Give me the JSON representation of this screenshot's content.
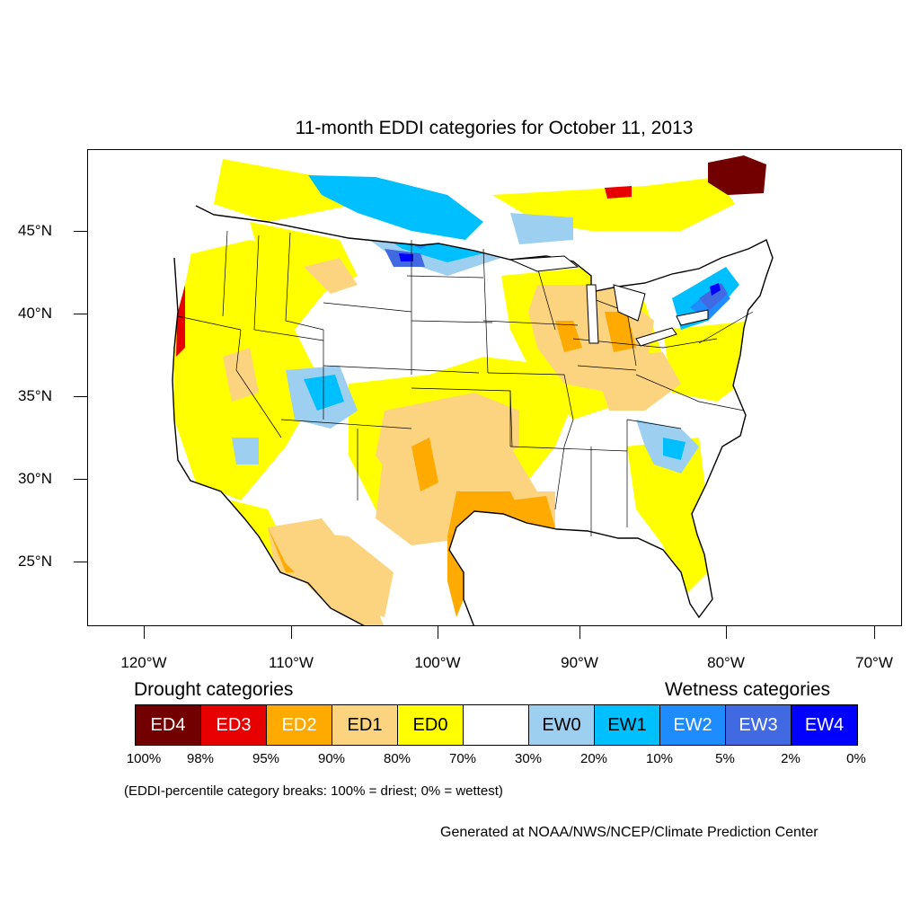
{
  "title": "11-month EDDI categories for October 11, 2013",
  "axes": {
    "lat_labels": [
      "45°N",
      "40°N",
      "35°N",
      "30°N",
      "25°N"
    ],
    "lon_labels": [
      "120°W",
      "110°W",
      "100°W",
      "90°W",
      "80°W",
      "70°W"
    ]
  },
  "legend": {
    "drought_heading": "Drought categories",
    "wetness_heading": "Wetness categories",
    "categories": [
      {
        "label": "ED4",
        "color": "#730000",
        "text_color": "#ffffff"
      },
      {
        "label": "ED3",
        "color": "#e60000",
        "text_color": "#ffffff"
      },
      {
        "label": "ED2",
        "color": "#ffaa00",
        "text_color": "#ffffff"
      },
      {
        "label": "ED1",
        "color": "#fcd37f",
        "text_color": "#000000"
      },
      {
        "label": "ED0",
        "color": "#ffff00",
        "text_color": "#000000"
      },
      {
        "label": "",
        "color": "#ffffff",
        "text_color": "#000000"
      },
      {
        "label": "EW0",
        "color": "#9dcff0",
        "text_color": "#000000"
      },
      {
        "label": "EW1",
        "color": "#00bfff",
        "text_color": "#000000"
      },
      {
        "label": "EW2",
        "color": "#1e8cff",
        "text_color": "#ffffff"
      },
      {
        "label": "EW3",
        "color": "#4169e1",
        "text_color": "#ffffff"
      },
      {
        "label": "EW4",
        "color": "#0000ff",
        "text_color": "#ffffff"
      }
    ],
    "percentiles": [
      "100%",
      "98%",
      "95%",
      "90%",
      "80%",
      "70%",
      "30%",
      "20%",
      "10%",
      "5%",
      "2%",
      "0%"
    ]
  },
  "note": "(EDDI-percentile category breaks: 100% = driest; 0% = wettest)",
  "credit": "Generated at NOAA/NWS/NCEP/Climate Prediction Center"
}
